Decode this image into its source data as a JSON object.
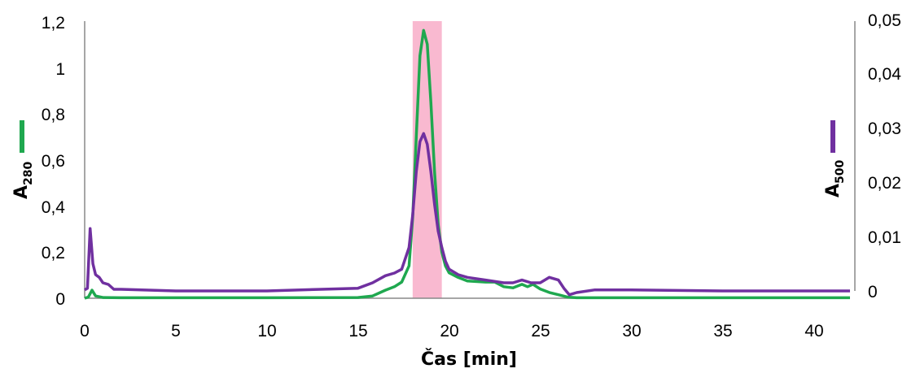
{
  "chart_data": {
    "type": "line",
    "title": "",
    "xlabel": "Čas [min]",
    "ylabel_left": {
      "base": "A",
      "sub": "280"
    },
    "ylabel_right": {
      "base": "A",
      "sub": "500"
    },
    "xlim": [
      0,
      42
    ],
    "ylim_left": [
      0,
      1.2
    ],
    "ylim_right": [
      -0.0007,
      0.05
    ],
    "x_ticks": [
      "0",
      "5",
      "10",
      "15",
      "20",
      "25",
      "30",
      "35",
      "40"
    ],
    "y_left_ticks": [
      "0",
      "0,2",
      "0,4",
      "0,6",
      "0,8",
      "1",
      "1,2"
    ],
    "y_right_ticks": [
      "0",
      "0,01",
      "0,02",
      "0,03",
      "0,04",
      "0,05"
    ],
    "grid": false,
    "highlight": {
      "x_from": 18.0,
      "x_to": 19.6,
      "color": "#f9b9d0"
    },
    "series": [
      {
        "axis": "left",
        "color": "#1fa84f",
        "x": [
          0.0,
          0.2,
          0.4,
          0.6,
          1.0,
          2.0,
          5.0,
          10.0,
          15.0,
          15.8,
          16.5,
          17.0,
          17.4,
          17.8,
          18.0,
          18.2,
          18.4,
          18.6,
          18.8,
          19.0,
          19.2,
          19.4,
          19.6,
          19.8,
          20.0,
          20.5,
          21.0,
          22.0,
          22.5,
          23.0,
          23.5,
          24.0,
          24.3,
          24.6,
          25.0,
          25.5,
          26.0,
          26.5,
          27.0,
          30.0,
          35.0,
          42.0
        ],
        "y": [
          0.0,
          0.005,
          0.035,
          0.01,
          0.003,
          0.002,
          0.002,
          0.002,
          0.003,
          0.01,
          0.035,
          0.05,
          0.07,
          0.14,
          0.35,
          0.7,
          1.05,
          1.16,
          1.1,
          0.85,
          0.55,
          0.32,
          0.2,
          0.14,
          0.11,
          0.09,
          0.075,
          0.07,
          0.07,
          0.05,
          0.045,
          0.06,
          0.05,
          0.06,
          0.04,
          0.025,
          0.015,
          0.005,
          0.002,
          0.002,
          0.002,
          0.002
        ]
      },
      {
        "axis": "right",
        "color": "#7030a0",
        "x": [
          0.0,
          0.15,
          0.3,
          0.45,
          0.6,
          0.8,
          1.0,
          1.3,
          1.6,
          2.0,
          5.0,
          10.0,
          15.0,
          15.8,
          16.5,
          17.0,
          17.4,
          17.8,
          18.0,
          18.2,
          18.4,
          18.6,
          18.8,
          19.0,
          19.2,
          19.4,
          19.6,
          19.8,
          20.0,
          20.5,
          21.0,
          22.0,
          23.0,
          23.5,
          24.0,
          24.5,
          25.0,
          25.5,
          26.0,
          26.3,
          26.6,
          27.0,
          28.0,
          30.0,
          35.0,
          40.0,
          42.0
        ],
        "y": [
          0.0002,
          0.0005,
          0.0115,
          0.005,
          0.003,
          0.0025,
          0.0015,
          0.0012,
          0.0003,
          0.0003,
          0.0,
          0.0,
          0.0005,
          0.0015,
          0.0028,
          0.0033,
          0.004,
          0.008,
          0.014,
          0.022,
          0.0275,
          0.029,
          0.027,
          0.022,
          0.016,
          0.011,
          0.008,
          0.0055,
          0.004,
          0.003,
          0.0025,
          0.002,
          0.0015,
          0.0015,
          0.002,
          0.0015,
          0.0015,
          0.0025,
          0.002,
          0.0005,
          -0.0007,
          -0.0003,
          0.0002,
          0.0002,
          0.0,
          0.0,
          0.0
        ]
      }
    ]
  }
}
